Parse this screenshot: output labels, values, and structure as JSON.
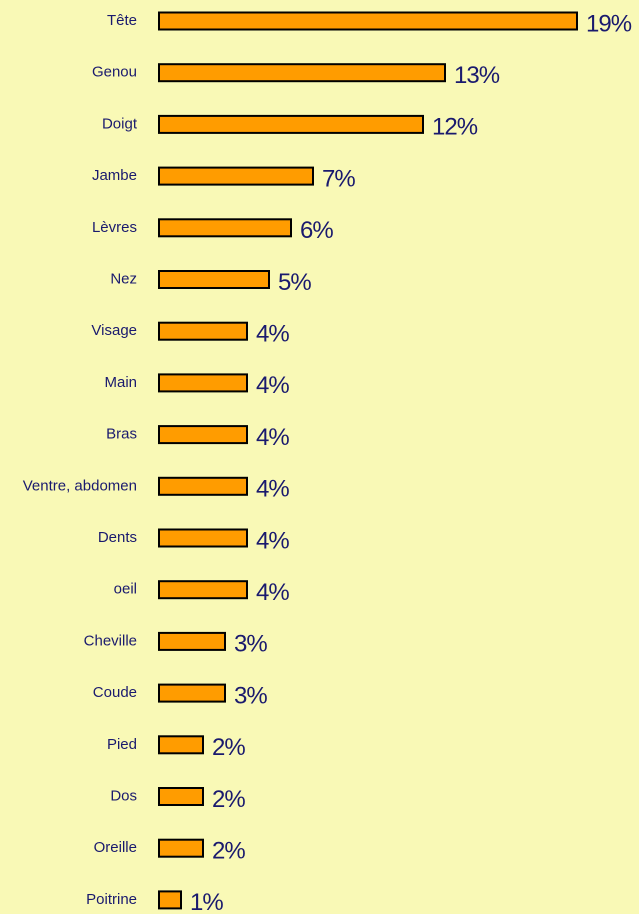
{
  "chart_data": {
    "type": "bar",
    "categories": [
      "Tête",
      "Genou",
      "Doigt",
      "Jambe",
      "Lèvres",
      "Nez",
      "Visage",
      "Main",
      "Bras",
      "Ventre, abdomen",
      "Dents",
      "oeil",
      "Cheville",
      "Coude",
      "Pied",
      "Dos",
      "Oreille",
      "Poitrine"
    ],
    "values": [
      19,
      13,
      12,
      7,
      6,
      5,
      4,
      4,
      4,
      4,
      4,
      4,
      3,
      3,
      2,
      2,
      2,
      1
    ],
    "value_labels": [
      "19%",
      "13%",
      "12%",
      "7%",
      "6%",
      "5%",
      "4%",
      "4%",
      "4%",
      "4%",
      "4%",
      "4%",
      "3%",
      "3%",
      "2%",
      "2%",
      "2%",
      "1%"
    ],
    "color": "#ff9c00"
  }
}
